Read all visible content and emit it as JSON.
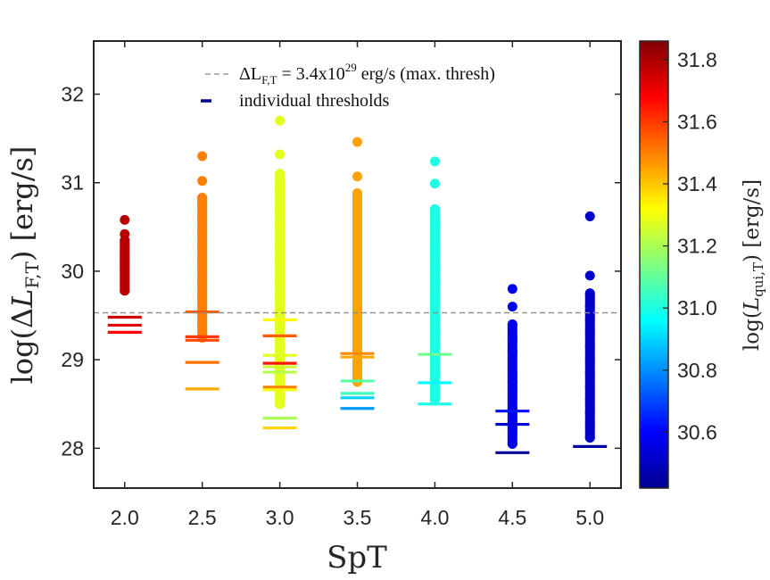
{
  "chart_data": {
    "type": "scatter",
    "title": "",
    "xlabel": "SpT",
    "ylabel": "log(ΔL_F,T) [erg/s]",
    "xlim": [
      1.8,
      5.2
    ],
    "ylim": [
      27.55,
      32.6
    ],
    "x_ticks": [
      2.0,
      2.5,
      3.0,
      3.5,
      4.0,
      4.5,
      5.0
    ],
    "x_tick_labels": [
      "2.0",
      "2.5",
      "3.0",
      "3.5",
      "4.0",
      "4.5",
      "5.0"
    ],
    "y_ticks": [
      28,
      29,
      30,
      31,
      32
    ],
    "y_tick_labels": [
      "28",
      "29",
      "30",
      "31",
      "32"
    ],
    "max_threshold": 29.53,
    "legend": {
      "position": "top",
      "dashed_label": "ΔL_F,T = 3.4x10^29 erg/s (max. thresh)",
      "dashed_prefix": "ΔL",
      "dashed_sub": "F,T",
      "dashed_mid": " = 3.4x10",
      "dashed_exp": "29",
      "dashed_unit": " erg/s (max. thresh)",
      "marker_label": "individual thresholds"
    },
    "colorbar": {
      "label": "log(L_qui,T) [erg/s]",
      "label_main": "log(",
      "label_sub": "qui,T",
      "label_tail": ") [erg/s]",
      "range": [
        30.42,
        31.86
      ],
      "ticks": [
        30.6,
        30.8,
        31.0,
        31.2,
        31.4,
        31.6,
        31.8
      ],
      "tick_labels": [
        "30.6",
        "30.8",
        "31.0",
        "31.2",
        "31.4",
        "31.6",
        "31.8"
      ],
      "colormap": "jet"
    },
    "series": [
      {
        "spt": 2.0,
        "cval": 31.78,
        "points": [
          29.78,
          29.9,
          30.0,
          30.08,
          30.15,
          30.22,
          30.28,
          30.35,
          30.42,
          30.58
        ],
        "thresholds": [
          {
            "y": 29.48,
            "c": 31.75
          },
          {
            "y": 29.39,
            "c": 31.72
          },
          {
            "y": 29.31,
            "c": 31.68
          }
        ]
      },
      {
        "spt": 2.5,
        "cval": 31.5,
        "points": [
          29.25,
          29.4,
          29.55,
          29.7,
          29.85,
          30.0,
          30.15,
          30.3,
          30.45,
          30.6,
          30.75,
          30.83,
          31.02,
          31.3
        ],
        "thresholds": [
          {
            "y": 29.54,
            "c": 31.55
          },
          {
            "y": 29.26,
            "c": 31.6
          },
          {
            "y": 29.22,
            "c": 31.58
          },
          {
            "y": 28.97,
            "c": 31.52
          },
          {
            "y": 28.67,
            "c": 31.44
          }
        ]
      },
      {
        "spt": 3.0,
        "cval": 31.28,
        "points": [
          28.5,
          28.7,
          28.9,
          29.1,
          29.3,
          29.5,
          29.7,
          29.9,
          30.1,
          30.3,
          30.5,
          30.7,
          30.9,
          31.1,
          31.32,
          31.7
        ],
        "thresholds": [
          {
            "y": 29.45,
            "c": 31.33
          },
          {
            "y": 29.27,
            "c": 31.55
          },
          {
            "y": 29.05,
            "c": 31.28
          },
          {
            "y": 28.96,
            "c": 31.65
          },
          {
            "y": 28.92,
            "c": 31.25
          },
          {
            "y": 28.86,
            "c": 31.22
          },
          {
            "y": 28.69,
            "c": 31.5
          },
          {
            "y": 28.66,
            "c": 31.3
          },
          {
            "y": 28.34,
            "c": 31.2
          },
          {
            "y": 28.23,
            "c": 31.38
          }
        ]
      },
      {
        "spt": 3.5,
        "cval": 31.45,
        "points": [
          28.75,
          28.9,
          29.1,
          29.25,
          29.4,
          29.55,
          29.7,
          29.85,
          30.0,
          30.15,
          30.3,
          30.45,
          30.6,
          30.75,
          30.88,
          31.07,
          31.46
        ],
        "thresholds": [
          {
            "y": 29.07,
            "c": 31.48
          },
          {
            "y": 29.03,
            "c": 31.44
          },
          {
            "y": 28.76,
            "c": 31.08
          },
          {
            "y": 28.62,
            "c": 31.05
          },
          {
            "y": 28.57,
            "c": 30.9
          },
          {
            "y": 28.45,
            "c": 30.82
          }
        ]
      },
      {
        "spt": 4.0,
        "cval": 31.0,
        "points": [
          28.55,
          28.7,
          28.85,
          29.0,
          29.15,
          29.3,
          29.45,
          29.6,
          29.75,
          29.9,
          30.05,
          30.2,
          30.3,
          30.5,
          30.7,
          30.99,
          31.24
        ],
        "thresholds": [
          {
            "y": 29.06,
            "c": 31.12
          },
          {
            "y": 28.74,
            "c": 30.95
          },
          {
            "y": 28.5,
            "c": 31.0
          }
        ]
      },
      {
        "spt": 4.5,
        "cval": 30.58,
        "points": [
          28.05,
          28.15,
          28.25,
          28.35,
          28.45,
          28.55,
          28.65,
          28.75,
          28.85,
          28.95,
          29.1,
          29.25,
          29.4,
          29.6,
          29.8
        ],
        "thresholds": [
          {
            "y": 28.42,
            "c": 30.62
          },
          {
            "y": 28.27,
            "c": 30.55
          },
          {
            "y": 27.95,
            "c": 30.45
          }
        ]
      },
      {
        "spt": 5.0,
        "cval": 30.52,
        "points": [
          28.12,
          28.25,
          28.4,
          28.55,
          28.7,
          28.85,
          29.0,
          29.15,
          29.3,
          29.45,
          29.6,
          29.75,
          29.95,
          30.62
        ],
        "thresholds": [
          {
            "y": 28.02,
            "c": 30.48
          }
        ]
      }
    ]
  }
}
